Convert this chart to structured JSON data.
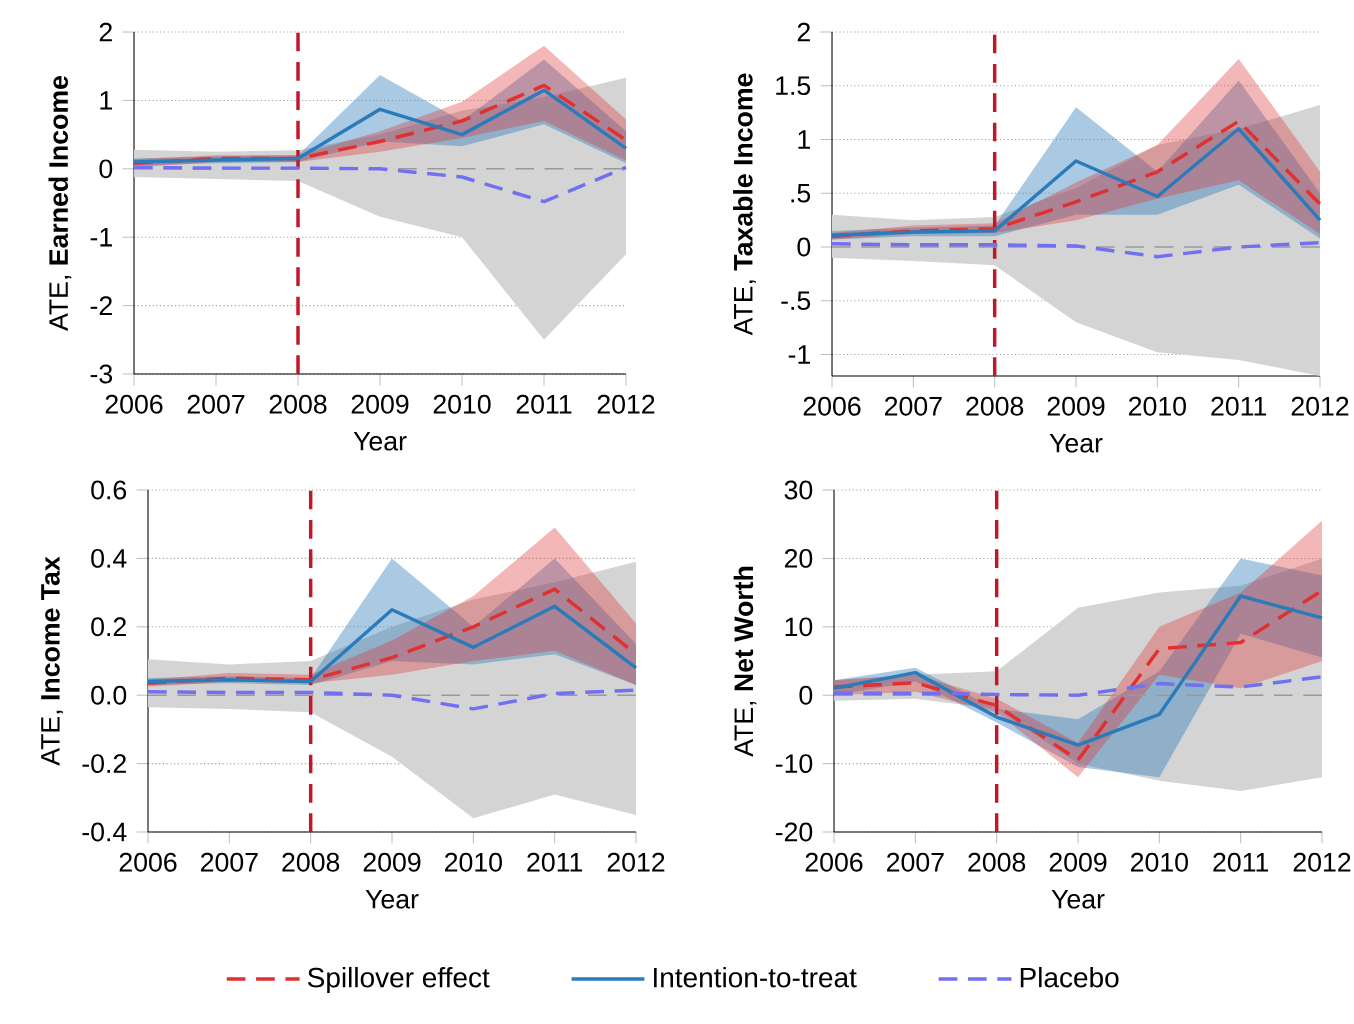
{
  "chart_data": [
    {
      "type": "line",
      "xlabel": "Year",
      "ylabel": "ATE, **Earned Income**",
      "x": [
        2006,
        2007,
        2008,
        2009,
        2010,
        2011,
        2012
      ],
      "xlim": [
        2006,
        2012
      ],
      "xticks": [
        2006,
        2007,
        2008,
        2009,
        2010,
        2011,
        2012
      ],
      "ylim": [
        -3,
        2
      ],
      "yticks": [
        -3,
        -2,
        -1,
        0,
        1,
        2
      ],
      "grid": "y",
      "line_style": "solid",
      "ref_lines": [
        {
          "axis": "x",
          "value": 2008,
          "color": "#c0182a",
          "line_style": "dashed"
        },
        {
          "axis": "y",
          "value": 0,
          "color": "#999999",
          "line_style": "dashed"
        }
      ],
      "series": [
        {
          "color": "#e03030",
          "line_style": "dashed",
          "values": [
            0.08,
            0.15,
            0.15,
            0.4,
            0.7,
            1.22,
            0.42
          ],
          "lower": [
            0.02,
            0.1,
            0.1,
            0.25,
            0.45,
            0.7,
            0.12
          ],
          "upper": [
            0.14,
            0.2,
            0.2,
            0.55,
            0.98,
            1.8,
            0.72
          ]
        },
        {
          "color": "#2b7bba",
          "values": [
            0.1,
            0.13,
            0.15,
            0.87,
            0.5,
            1.15,
            0.3
          ],
          "lower": [
            0.05,
            0.08,
            0.1,
            0.4,
            0.33,
            0.65,
            0.08
          ],
          "upper": [
            0.15,
            0.18,
            0.2,
            1.37,
            0.7,
            1.6,
            0.55
          ]
        },
        {
          "color": "#7070f0",
          "line_style": "dashed",
          "values": [
            0.02,
            0.01,
            0.01,
            0.0,
            -0.12,
            -0.48,
            0.02
          ],
          "lower": [
            -0.12,
            -0.15,
            -0.18,
            -0.7,
            -1.0,
            -2.5,
            -1.25
          ],
          "upper": [
            0.28,
            0.25,
            0.27,
            0.5,
            0.85,
            1.05,
            1.33
          ]
        }
      ]
    },
    {
      "type": "line",
      "xlabel": "Year",
      "ylabel": "ATE, **Taxable Income**",
      "x": [
        2006,
        2007,
        2008,
        2009,
        2010,
        2011,
        2012
      ],
      "xlim": [
        2006,
        2012
      ],
      "xticks": [
        2006,
        2007,
        2008,
        2009,
        2010,
        2011,
        2012
      ],
      "ylim": [
        -1.2,
        2
      ],
      "yticks": [
        -1,
        {
          "value": -0.5,
          "label": "-.5"
        },
        0,
        {
          "value": 0.5,
          "label": ".5"
        },
        1,
        1.5,
        2
      ],
      "grid": "y",
      "line_style": "solid",
      "ref_lines": [
        {
          "axis": "x",
          "value": 2008,
          "color": "#c0182a",
          "line_style": "dashed"
        },
        {
          "axis": "y",
          "value": 0,
          "color": "#999999",
          "line_style": "dashed"
        }
      ],
      "series": [
        {
          "color": "#e03030",
          "line_style": "dashed",
          "values": [
            0.1,
            0.15,
            0.17,
            0.42,
            0.7,
            1.17,
            0.4
          ],
          "lower": [
            0.07,
            0.12,
            0.13,
            0.25,
            0.45,
            0.62,
            0.12
          ],
          "upper": [
            0.13,
            0.2,
            0.22,
            0.6,
            0.95,
            1.75,
            0.7
          ]
        },
        {
          "color": "#2b7bba",
          "values": [
            0.11,
            0.14,
            0.15,
            0.8,
            0.47,
            1.1,
            0.25
          ],
          "lower": [
            0.07,
            0.1,
            0.1,
            0.3,
            0.3,
            0.58,
            0.08
          ],
          "upper": [
            0.15,
            0.18,
            0.2,
            1.3,
            0.7,
            1.55,
            0.5
          ]
        },
        {
          "color": "#7070f0",
          "line_style": "dashed",
          "values": [
            0.03,
            0.02,
            0.02,
            0.01,
            -0.09,
            0.0,
            0.04
          ],
          "lower": [
            -0.1,
            -0.13,
            -0.17,
            -0.7,
            -0.98,
            -1.05,
            -1.2
          ],
          "upper": [
            0.3,
            0.25,
            0.28,
            0.55,
            0.95,
            1.1,
            1.32
          ]
        }
      ]
    },
    {
      "type": "line",
      "xlabel": "Year",
      "ylabel": "ATE, **Income Tax**",
      "x": [
        2006,
        2007,
        2008,
        2009,
        2010,
        2011,
        2012
      ],
      "xlim": [
        2006,
        2012
      ],
      "xticks": [
        2006,
        2007,
        2008,
        2009,
        2010,
        2011,
        2012
      ],
      "ylim": [
        -0.4,
        0.6
      ],
      "yticks": [
        -0.4,
        -0.2,
        {
          "value": 0,
          "label": "0.0"
        },
        0.2,
        0.4,
        0.6
      ],
      "grid": "y",
      "line_style": "solid",
      "legend": "bottom",
      "ref_lines": [
        {
          "axis": "x",
          "value": 2008,
          "color": "#c0182a",
          "line_style": "dashed"
        },
        {
          "axis": "y",
          "value": 0,
          "color": "#999999",
          "line_style": "dashed"
        }
      ],
      "series": [
        {
          "name": "Spillover effect",
          "color": "#e03030",
          "line_style": "dashed",
          "values": [
            0.035,
            0.05,
            0.045,
            0.11,
            0.2,
            0.31,
            0.12
          ],
          "lower": [
            0.025,
            0.04,
            0.035,
            0.06,
            0.1,
            0.13,
            0.03
          ],
          "upper": [
            0.045,
            0.065,
            0.06,
            0.16,
            0.29,
            0.49,
            0.21
          ]
        },
        {
          "name": "Intention-to-treat",
          "color": "#2b7bba",
          "values": [
            0.04,
            0.045,
            0.04,
            0.25,
            0.14,
            0.26,
            0.08
          ],
          "lower": [
            0.03,
            0.035,
            0.03,
            0.1,
            0.09,
            0.12,
            0.03
          ],
          "upper": [
            0.05,
            0.055,
            0.05,
            0.4,
            0.2,
            0.4,
            0.15
          ]
        },
        {
          "name": "Placebo",
          "color": "#7070f0",
          "line_style": "dashed",
          "values": [
            0.01,
            0.008,
            0.008,
            0.0,
            -0.04,
            0.005,
            0.015
          ],
          "lower": [
            -0.035,
            -0.04,
            -0.05,
            -0.18,
            -0.36,
            -0.29,
            -0.35
          ],
          "upper": [
            0.105,
            0.09,
            0.1,
            0.2,
            0.28,
            0.33,
            0.39
          ]
        }
      ]
    },
    {
      "type": "line",
      "xlabel": "Year",
      "ylabel": "ATE, **Net Worth**",
      "x": [
        2006,
        2007,
        2008,
        2009,
        2010,
        2011,
        2012
      ],
      "xlim": [
        2006,
        2012
      ],
      "xticks": [
        2006,
        2007,
        2008,
        2009,
        2010,
        2011,
        2012
      ],
      "ylim": [
        -20,
        30
      ],
      "yticks": [
        -20,
        -10,
        0,
        10,
        20,
        30
      ],
      "grid": "y",
      "line_style": "solid",
      "ref_lines": [
        {
          "axis": "x",
          "value": 2008,
          "color": "#c0182a",
          "line_style": "dashed"
        },
        {
          "axis": "y",
          "value": 0,
          "color": "#999999",
          "line_style": "dashed"
        }
      ],
      "series": [
        {
          "color": "#e03030",
          "line_style": "dashed",
          "values": [
            1.2,
            1.8,
            -1.5,
            -9.5,
            6.8,
            7.7,
            15.3
          ],
          "lower": [
            0,
            0.5,
            -2.5,
            -12,
            3,
            1,
            5
          ],
          "upper": [
            2.2,
            3,
            -0.5,
            -7,
            10,
            15,
            25.5
          ]
        },
        {
          "color": "#2b7bba",
          "values": [
            1,
            3.3,
            -3.2,
            -7.3,
            -2.8,
            14.5,
            11.3
          ],
          "lower": [
            0,
            2,
            -4,
            -10.5,
            -12,
            9,
            5.5
          ],
          "upper": [
            2.2,
            4,
            -2,
            -3.5,
            3.5,
            20,
            17.5
          ]
        },
        {
          "color": "#7070f0",
          "line_style": "dashed",
          "values": [
            0.3,
            0.3,
            0.1,
            0,
            1.7,
            1.2,
            2.7
          ],
          "lower": [
            -0.8,
            -0.5,
            -2,
            -10,
            -12.5,
            -14,
            -12
          ],
          "upper": [
            2.2,
            3,
            3.5,
            12.8,
            15,
            16,
            20
          ]
        }
      ]
    }
  ]
}
